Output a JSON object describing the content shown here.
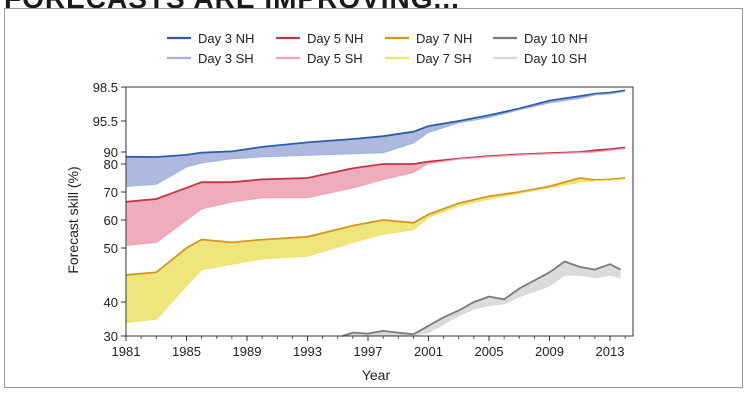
{
  "page": {
    "heading": "FORECASTS ARE IMPROVING..."
  },
  "chart_data": {
    "type": "area",
    "xlabel": "Year",
    "ylabel": "Forecast skill (%)",
    "xlim": [
      1981,
      2014
    ],
    "ylim": [
      30,
      98.5
    ],
    "y_scale": "non-linear (tick-spaced)",
    "x_ticks": [
      1981,
      1985,
      1989,
      1993,
      1997,
      2001,
      2005,
      2009,
      2013
    ],
    "y_ticks": [
      30,
      40,
      50,
      60,
      70,
      80,
      90,
      95.5,
      98.5
    ],
    "x_tick_labels": [
      "1981",
      "1985",
      "1989",
      "1993",
      "1997",
      "2001",
      "2005",
      "2009",
      "2013"
    ],
    "y_tick_labels": [
      "30",
      "40",
      "50",
      "60",
      "70",
      "80",
      "90",
      "95.5",
      "98.5"
    ],
    "grid": false,
    "legend_position": "top",
    "series": [
      {
        "name": "Day 3 NH",
        "color": "#2f5ca8",
        "points": [
          [
            1981,
            86
          ],
          [
            1983,
            85.8
          ],
          [
            1985,
            87.6
          ],
          [
            1986,
            89.5
          ],
          [
            1988,
            90.1
          ],
          [
            1990,
            90.9
          ],
          [
            1993,
            91.7
          ],
          [
            1996,
            92.3
          ],
          [
            1998,
            92.8
          ],
          [
            2000,
            93.6
          ],
          [
            2001,
            94.6
          ],
          [
            2003,
            95.5
          ],
          [
            2005,
            96
          ],
          [
            2007,
            96.6
          ],
          [
            2009,
            97.3
          ],
          [
            2011,
            97.7
          ],
          [
            2012,
            97.9
          ],
          [
            2013,
            98
          ],
          [
            2014,
            98.2
          ]
        ]
      },
      {
        "name": "Day 3 SH",
        "color": "#a5b1dc",
        "points": [
          [
            1981,
            72
          ],
          [
            1983,
            72.8
          ],
          [
            1985,
            79
          ],
          [
            1986,
            81
          ],
          [
            1988,
            84.5
          ],
          [
            1990,
            86
          ],
          [
            1993,
            87.3
          ],
          [
            1996,
            88.6
          ],
          [
            1998,
            89.5
          ],
          [
            2000,
            91.6
          ],
          [
            2001,
            93.5
          ],
          [
            2003,
            95.2
          ],
          [
            2005,
            95.8
          ],
          [
            2007,
            96.5
          ],
          [
            2009,
            97.1
          ],
          [
            2011,
            97.5
          ],
          [
            2012,
            97.8
          ],
          [
            2013,
            97.9
          ],
          [
            2014,
            98.1
          ]
        ]
      },
      {
        "name": "Day 5 NH",
        "color": "#c63642",
        "points": [
          [
            1981,
            66.5
          ],
          [
            1983,
            67.5
          ],
          [
            1985,
            71.5
          ],
          [
            1986,
            73.5
          ],
          [
            1988,
            73.5
          ],
          [
            1990,
            74.5
          ],
          [
            1993,
            75
          ],
          [
            1996,
            78.5
          ],
          [
            1998,
            80
          ],
          [
            2000,
            80
          ],
          [
            2001,
            82
          ],
          [
            2003,
            84.5
          ],
          [
            2005,
            86.5
          ],
          [
            2007,
            88
          ],
          [
            2009,
            89
          ],
          [
            2011,
            90
          ],
          [
            2012,
            90.3
          ],
          [
            2013,
            90.5
          ],
          [
            2014,
            90.8
          ]
        ]
      },
      {
        "name": "Day 5 SH",
        "color": "#eda3b6",
        "points": [
          [
            1981,
            51
          ],
          [
            1983,
            52
          ],
          [
            1985,
            60
          ],
          [
            1986,
            64
          ],
          [
            1988,
            66.5
          ],
          [
            1990,
            68
          ],
          [
            1993,
            68
          ],
          [
            1996,
            71.5
          ],
          [
            1998,
            74.5
          ],
          [
            2000,
            77
          ],
          [
            2001,
            80.5
          ],
          [
            2003,
            84
          ],
          [
            2005,
            86
          ],
          [
            2007,
            87.5
          ],
          [
            2009,
            88.5
          ],
          [
            2011,
            89.5
          ],
          [
            2012,
            90
          ],
          [
            2013,
            90.3
          ],
          [
            2014,
            90.6
          ]
        ]
      },
      {
        "name": "Day 7 NH",
        "color": "#d3961f",
        "points": [
          [
            1981,
            45
          ],
          [
            1983,
            45.5
          ],
          [
            1985,
            50
          ],
          [
            1986,
            53
          ],
          [
            1988,
            52
          ],
          [
            1990,
            53
          ],
          [
            1993,
            54
          ],
          [
            1996,
            58
          ],
          [
            1998,
            60
          ],
          [
            2000,
            59
          ],
          [
            2001,
            62
          ],
          [
            2003,
            66
          ],
          [
            2005,
            68.5
          ],
          [
            2007,
            70
          ],
          [
            2009,
            72
          ],
          [
            2011,
            75
          ],
          [
            2012,
            74.3
          ],
          [
            2013,
            74.5
          ],
          [
            2014,
            75
          ]
        ]
      },
      {
        "name": "Day 7 SH",
        "color": "#ece36f",
        "points": [
          [
            1981,
            34
          ],
          [
            1983,
            35
          ],
          [
            1985,
            43
          ],
          [
            1986,
            46
          ],
          [
            1988,
            47
          ],
          [
            1990,
            48
          ],
          [
            1993,
            48.5
          ],
          [
            1996,
            52
          ],
          [
            1998,
            55
          ],
          [
            2000,
            56.5
          ],
          [
            2001,
            61
          ],
          [
            2003,
            65
          ],
          [
            2005,
            67.5
          ],
          [
            2007,
            69.5
          ],
          [
            2009,
            71.5
          ],
          [
            2011,
            73.5
          ],
          [
            2012,
            74
          ],
          [
            2013,
            74.2
          ],
          [
            2014,
            74.6
          ]
        ]
      },
      {
        "name": "Day 10 NH",
        "color": "#7b7b7b",
        "points": [
          [
            1995.3,
            30
          ],
          [
            1996,
            31
          ],
          [
            1997,
            30.7
          ],
          [
            1998,
            31.5
          ],
          [
            1999,
            31
          ],
          [
            2000,
            30.5
          ],
          [
            2001,
            33
          ],
          [
            2002,
            35.5
          ],
          [
            2003,
            37.5
          ],
          [
            2004,
            40
          ],
          [
            2005,
            41
          ],
          [
            2006,
            40.5
          ],
          [
            2007,
            42.5
          ],
          [
            2008,
            44
          ],
          [
            2009,
            45.5
          ],
          [
            2010,
            47.5
          ],
          [
            2011,
            46.5
          ],
          [
            2012,
            46
          ],
          [
            2013,
            47
          ],
          [
            2013.7,
            46
          ]
        ]
      },
      {
        "name": "Day 10 SH",
        "color": "#d7d7d7",
        "points": [
          [
            1999.3,
            30
          ],
          [
            2000,
            30.2
          ],
          [
            2001,
            31
          ],
          [
            2002,
            33.5
          ],
          [
            2003,
            36
          ],
          [
            2004,
            38
          ],
          [
            2005,
            39
          ],
          [
            2006,
            39.5
          ],
          [
            2007,
            41
          ],
          [
            2008,
            42
          ],
          [
            2009,
            43
          ],
          [
            2010,
            45
          ],
          [
            2011,
            45
          ],
          [
            2012,
            44.5
          ],
          [
            2013,
            45
          ],
          [
            2013.7,
            44.5
          ]
        ]
      }
    ]
  }
}
